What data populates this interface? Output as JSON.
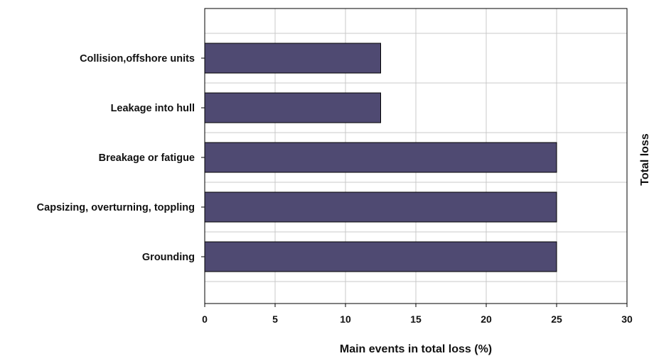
{
  "chart_data": {
    "type": "bar",
    "orientation": "horizontal",
    "categories": [
      "Collision,offshore units",
      "Leakage into hull",
      "Breakage or fatigue",
      "Capsizing, overturning, toppling",
      "Grounding"
    ],
    "series": [
      {
        "name": "Total loss",
        "values": [
          12.5,
          12.5,
          25,
          25,
          25
        ],
        "color": "#4f4a72"
      }
    ],
    "xlabel": "Main events in total loss (%)",
    "ylabel": "",
    "xlim": [
      0,
      30
    ],
    "xticks": [
      "0",
      "5",
      "10",
      "15",
      "20",
      "25",
      "30"
    ],
    "grid": true,
    "legend_position": "right"
  }
}
